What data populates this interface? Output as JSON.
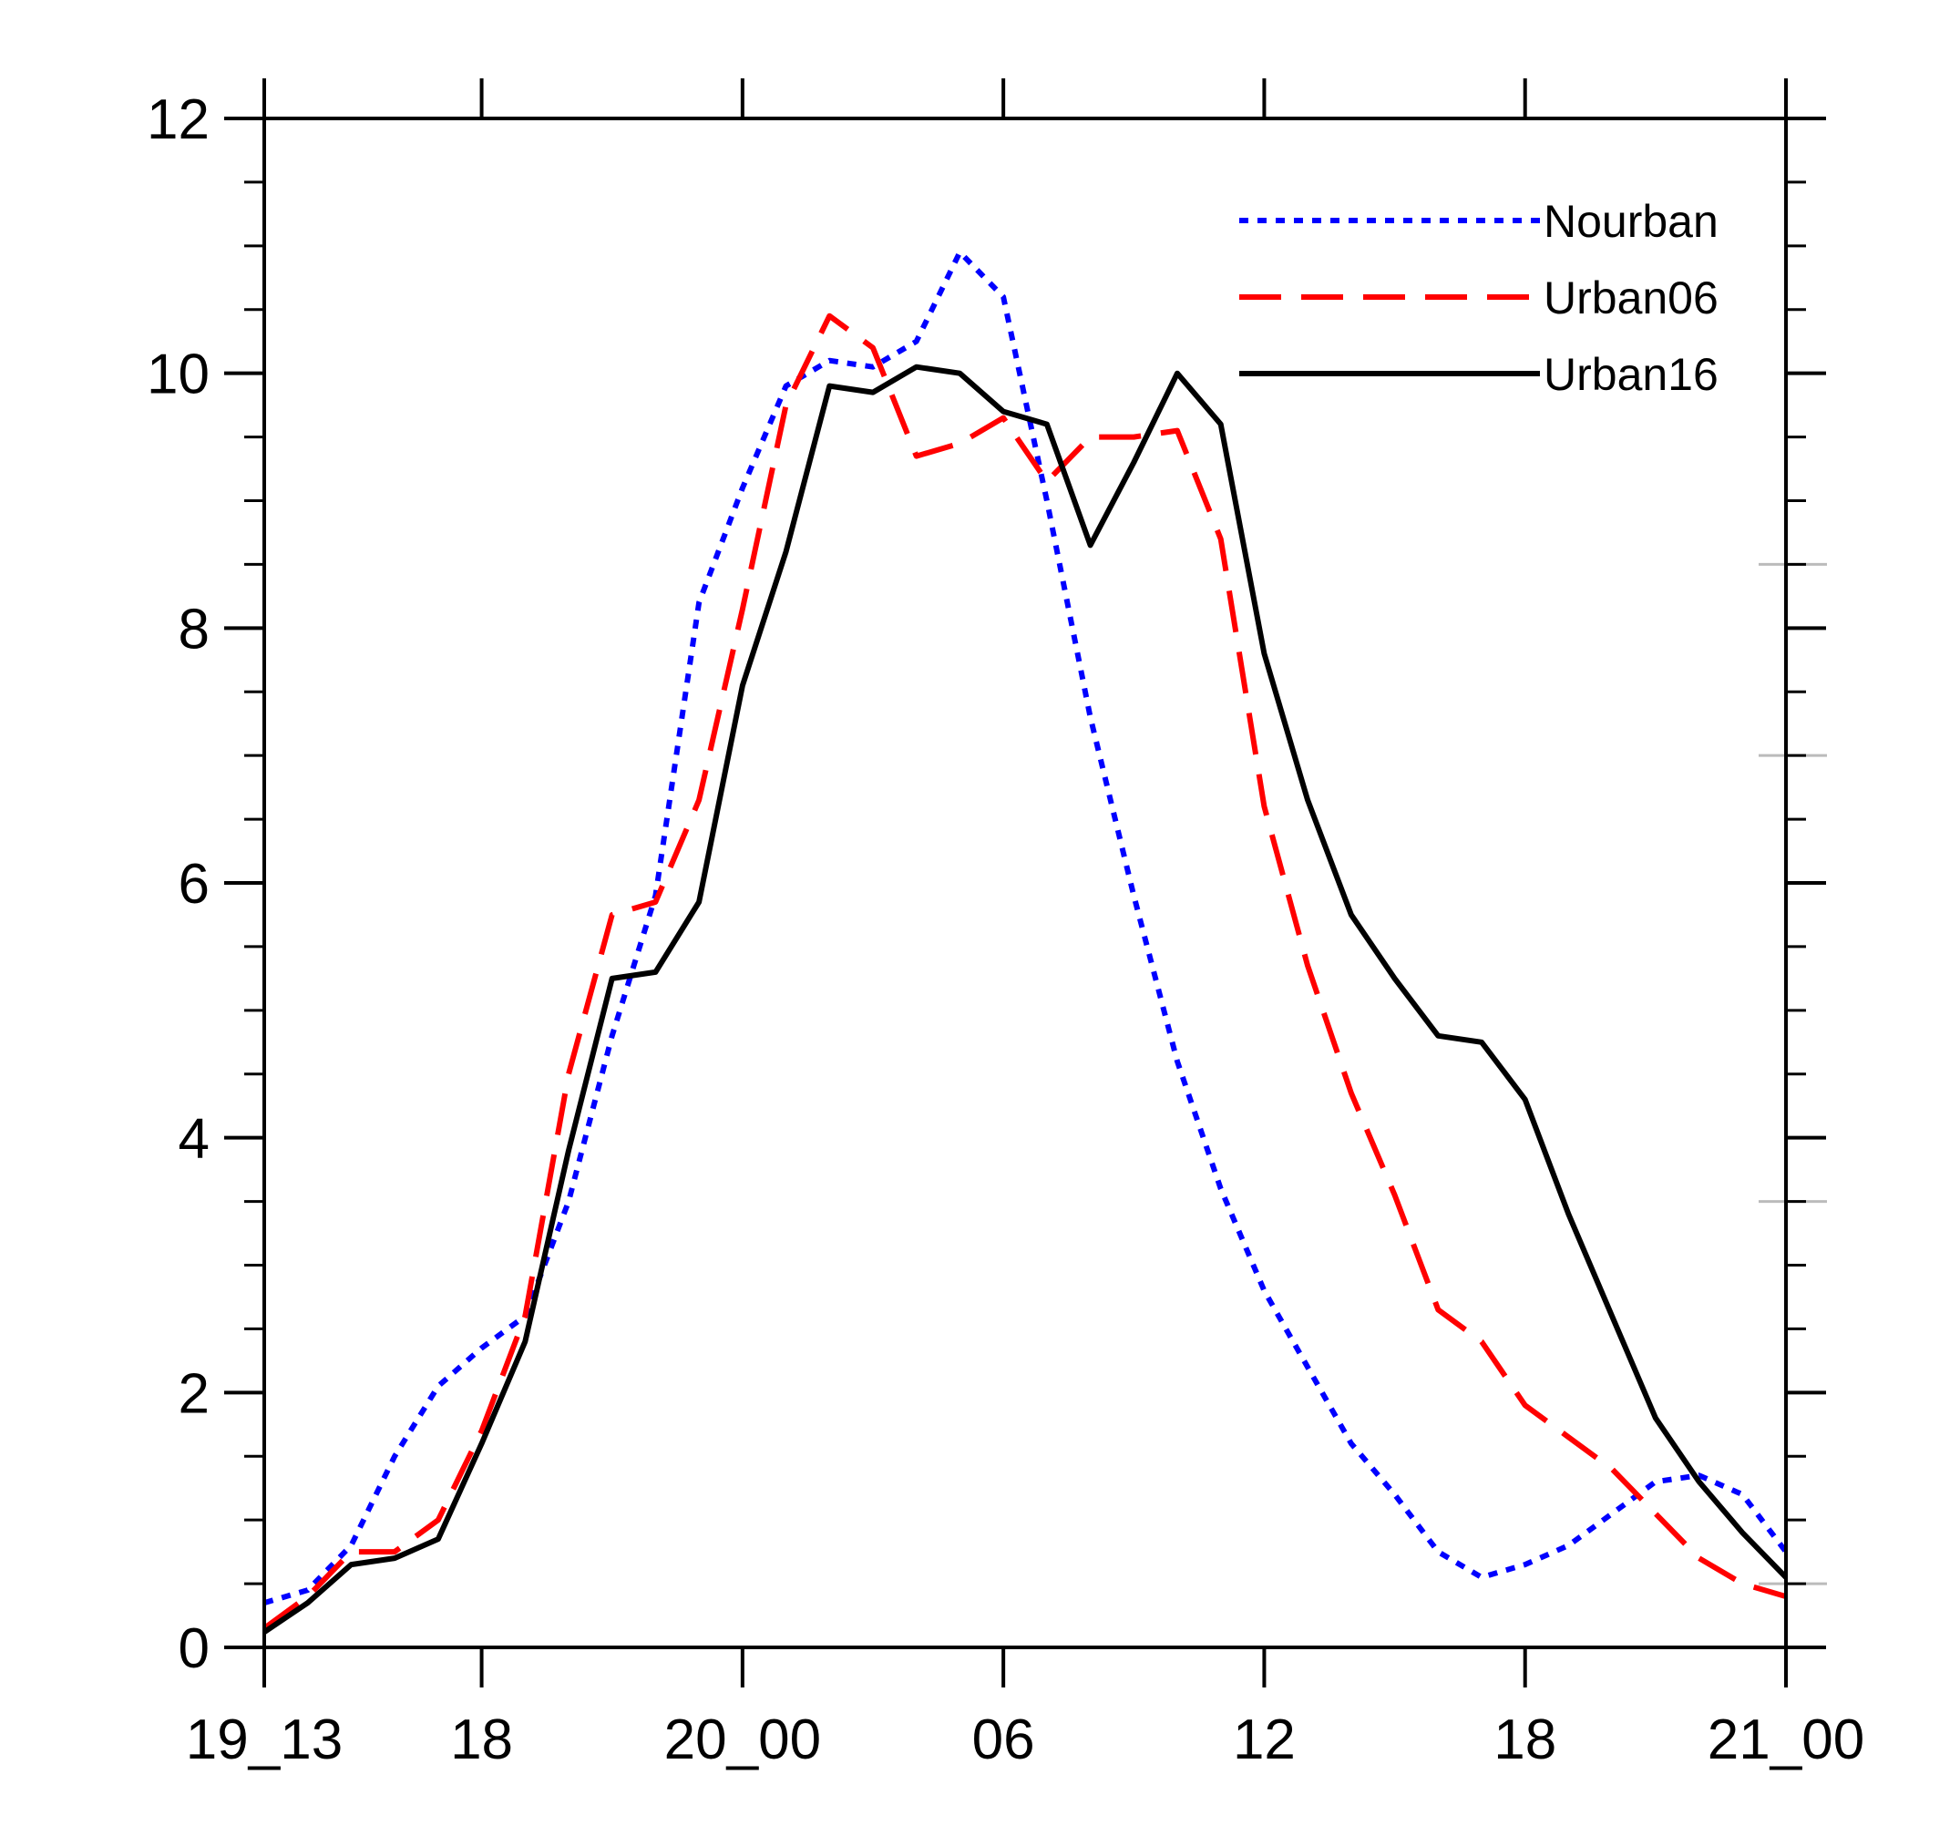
{
  "chart_data": {
    "type": "line",
    "title": "",
    "xlabel": "",
    "ylabel": "",
    "xlim": [
      0,
      35
    ],
    "ylim": [
      0,
      12
    ],
    "x_ticks": [
      {
        "x": 0,
        "label": "19_13"
      },
      {
        "x": 5,
        "label": "18"
      },
      {
        "x": 11,
        "label": "20_00"
      },
      {
        "x": 17,
        "label": "06"
      },
      {
        "x": 23,
        "label": "12"
      },
      {
        "x": 29,
        "label": "18"
      },
      {
        "x": 35,
        "label": "21_00"
      }
    ],
    "y_ticks": [
      {
        "y": 0,
        "label": "0"
      },
      {
        "y": 2,
        "label": "2"
      },
      {
        "y": 4,
        "label": "4"
      },
      {
        "y": 6,
        "label": "6"
      },
      {
        "y": 8,
        "label": "8"
      },
      {
        "y": 10,
        "label": "10"
      },
      {
        "y": 12,
        "label": "12"
      }
    ],
    "legend_position": "top-right",
    "series": [
      {
        "name": "Nourban",
        "color": "#0000ff",
        "style": "dotted",
        "x": [
          0,
          1,
          2,
          3,
          4,
          5,
          6,
          7,
          8,
          9,
          10,
          11,
          12,
          13,
          14,
          15,
          16,
          17,
          18,
          19,
          20,
          21,
          22,
          23,
          24,
          25,
          26,
          27,
          28,
          29,
          30,
          31,
          32,
          33,
          34,
          35
        ],
        "values": [
          0.35,
          0.45,
          0.8,
          1.5,
          2.05,
          2.35,
          2.6,
          3.5,
          4.8,
          5.9,
          8.2,
          9.1,
          9.9,
          10.1,
          10.05,
          10.25,
          10.95,
          10.6,
          9.0,
          7.3,
          5.9,
          4.6,
          3.6,
          2.8,
          2.2,
          1.6,
          1.2,
          0.75,
          0.55,
          0.65,
          0.8,
          1.05,
          1.3,
          1.35,
          1.2,
          0.75
        ]
      },
      {
        "name": "Urban06",
        "color": "#ff0000",
        "style": "dashed",
        "x": [
          0,
          1,
          2,
          3,
          4,
          5,
          6,
          7,
          8,
          9,
          10,
          11,
          12,
          13,
          14,
          15,
          16,
          17,
          18,
          19,
          20,
          21,
          22,
          23,
          24,
          25,
          26,
          27,
          28,
          29,
          30,
          31,
          32,
          33,
          34,
          35
        ],
        "values": [
          0.15,
          0.4,
          0.75,
          0.75,
          1.0,
          1.7,
          2.6,
          4.5,
          5.75,
          5.85,
          6.65,
          8.15,
          9.75,
          10.45,
          10.2,
          9.35,
          9.45,
          9.65,
          9.15,
          9.5,
          9.5,
          9.55,
          8.7,
          6.6,
          5.35,
          4.35,
          3.55,
          2.65,
          2.4,
          1.9,
          1.65,
          1.4,
          1.05,
          0.7,
          0.5,
          0.4
        ]
      },
      {
        "name": "Urban16",
        "color": "#000000",
        "style": "solid",
        "x": [
          0,
          1,
          2,
          3,
          4,
          5,
          6,
          7,
          8,
          9,
          10,
          11,
          12,
          13,
          14,
          15,
          16,
          17,
          18,
          19,
          20,
          21,
          22,
          23,
          24,
          25,
          26,
          27,
          28,
          29,
          30,
          31,
          32,
          33,
          34,
          35
        ],
        "values": [
          0.12,
          0.35,
          0.65,
          0.7,
          0.85,
          1.6,
          2.4,
          3.9,
          5.25,
          5.3,
          5.85,
          7.55,
          8.6,
          9.9,
          9.85,
          10.05,
          10.0,
          9.7,
          9.6,
          8.65,
          9.3,
          10.0,
          9.6,
          7.8,
          6.65,
          5.75,
          5.25,
          4.8,
          4.75,
          4.3,
          3.4,
          2.6,
          1.8,
          1.3,
          0.9,
          0.55
        ]
      }
    ]
  }
}
